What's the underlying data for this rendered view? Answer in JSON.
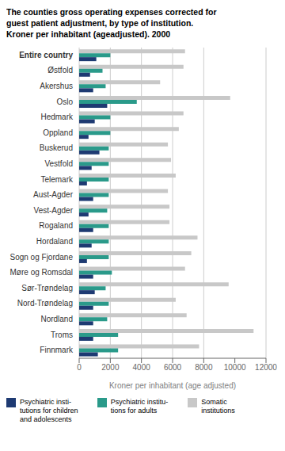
{
  "chart_data": {
    "type": "bar",
    "orientation": "horizontal",
    "title": "The counties gross operating expenses corrected for\nguest patient adjustment, by type of institution.\nKroner per inhabitant (ageadjusted). 2000",
    "xlabel": "Kroner per inhabitant (age adjusted)",
    "categories": [
      "Entire country",
      "Østfold",
      "Akershus",
      "Oslo",
      "Hedmark",
      "Oppland",
      "Buskerud",
      "Vestfold",
      "Telemark",
      "Aust-Agder",
      "Vest-Agder",
      "Rogaland",
      "Hordaland",
      "Sogn og Fjordane",
      "Møre og Romsdal",
      "Sør-Trøndelag",
      "Nord-Trøndelag",
      "Nordland",
      "Troms",
      "Finnmark"
    ],
    "series": [
      {
        "name": "Somatic\ninstitutions",
        "color": "#c8c8c8",
        "values": [
          6800,
          6700,
          5200,
          9700,
          6700,
          6400,
          5700,
          5900,
          6200,
          5700,
          5800,
          5800,
          7600,
          7200,
          6800,
          9600,
          6200,
          6900,
          11200,
          7700
        ]
      },
      {
        "name": "Psychiatric institu-\ntions for adults",
        "color": "#2a9a8a",
        "values": [
          2000,
          1500,
          1700,
          3700,
          2000,
          2000,
          1900,
          1900,
          1900,
          1900,
          1800,
          1900,
          1900,
          1900,
          2100,
          1700,
          1900,
          1800,
          2500,
          2500
        ]
      },
      {
        "name": "Psychiatric insti-\ntutions for children\nand adolescents",
        "color": "#1e3a72",
        "values": [
          1100,
          700,
          900,
          1800,
          1000,
          600,
          1300,
          800,
          500,
          900,
          600,
          900,
          800,
          500,
          900,
          1000,
          900,
          900,
          900,
          1200
        ]
      }
    ],
    "xlim": [
      0,
      12000
    ],
    "xticks": [
      0,
      2000,
      4000,
      6000,
      8000,
      10000,
      12000
    ],
    "grid": true,
    "legend": "bottom"
  }
}
